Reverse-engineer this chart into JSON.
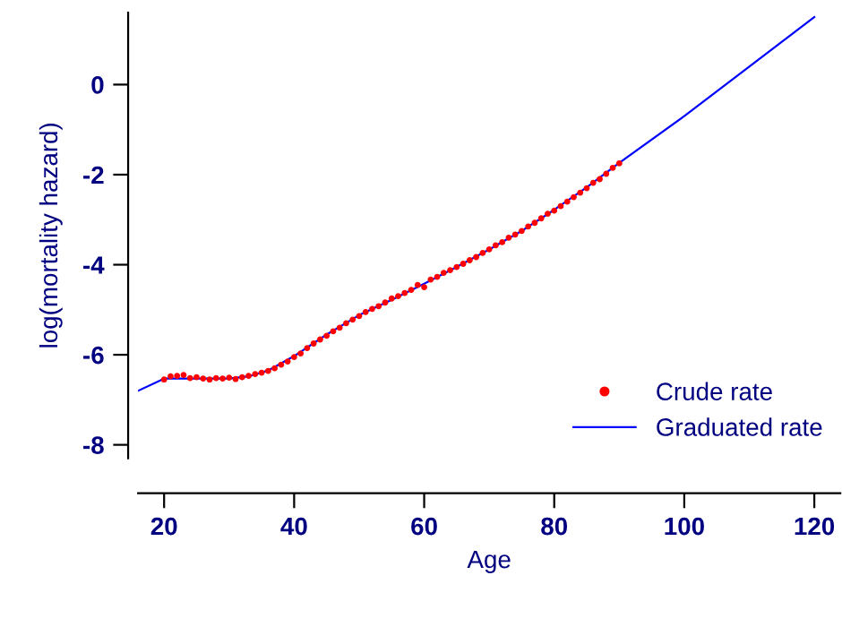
{
  "chart_data": {
    "type": "scatter",
    "xlabel": "Age",
    "ylabel": "log(mortality hazard)",
    "xlim": [
      16,
      124
    ],
    "ylim": [
      -8.3,
      1.6
    ],
    "xticks": [
      20,
      40,
      60,
      80,
      100,
      120
    ],
    "yticks": [
      -8,
      -6,
      -4,
      -2,
      0
    ],
    "grid": false,
    "legend": "bottom right",
    "series": [
      {
        "name": "Crude rate",
        "marker": "circle",
        "color": "#ff0000",
        "x": [
          20,
          21,
          22,
          23,
          24,
          25,
          26,
          27,
          28,
          29,
          30,
          31,
          32,
          33,
          34,
          35,
          36,
          37,
          38,
          39,
          40,
          41,
          42,
          43,
          44,
          45,
          46,
          47,
          48,
          49,
          50,
          51,
          52,
          53,
          54,
          55,
          56,
          57,
          58,
          59,
          60,
          61,
          62,
          63,
          64,
          65,
          66,
          67,
          68,
          69,
          70,
          71,
          72,
          73,
          74,
          75,
          76,
          77,
          78,
          79,
          80,
          81,
          82,
          83,
          84,
          85,
          86,
          87,
          88,
          89,
          90
        ],
        "values": [
          -6.55,
          -6.48,
          -6.47,
          -6.45,
          -6.52,
          -6.5,
          -6.53,
          -6.55,
          -6.52,
          -6.53,
          -6.51,
          -6.54,
          -6.5,
          -6.47,
          -6.43,
          -6.4,
          -6.36,
          -6.3,
          -6.22,
          -6.15,
          -6.05,
          -5.97,
          -5.85,
          -5.75,
          -5.66,
          -5.58,
          -5.48,
          -5.4,
          -5.3,
          -5.22,
          -5.14,
          -5.05,
          -4.98,
          -4.92,
          -4.84,
          -4.75,
          -4.7,
          -4.63,
          -4.56,
          -4.45,
          -4.5,
          -4.33,
          -4.27,
          -4.18,
          -4.12,
          -4.05,
          -3.98,
          -3.9,
          -3.83,
          -3.74,
          -3.66,
          -3.57,
          -3.5,
          -3.4,
          -3.33,
          -3.25,
          -3.15,
          -3.07,
          -2.97,
          -2.87,
          -2.8,
          -2.7,
          -2.6,
          -2.5,
          -2.4,
          -2.3,
          -2.18,
          -2.1,
          -1.98,
          -1.85,
          -1.75
        ]
      },
      {
        "name": "Graduated rate",
        "type": "line",
        "marker": "none",
        "line_style": "solid",
        "color": "#0000ff",
        "x": [
          16,
          20,
          25,
          30,
          33,
          36,
          40,
          45,
          50,
          55,
          60,
          65,
          70,
          75,
          80,
          85,
          90,
          100,
          110,
          120
        ],
        "values": [
          -6.8,
          -6.53,
          -6.53,
          -6.53,
          -6.48,
          -6.35,
          -6.03,
          -5.55,
          -5.12,
          -4.78,
          -4.42,
          -4.05,
          -3.66,
          -3.25,
          -2.78,
          -2.28,
          -1.74,
          -0.7,
          0.4,
          1.5
        ]
      }
    ]
  }
}
